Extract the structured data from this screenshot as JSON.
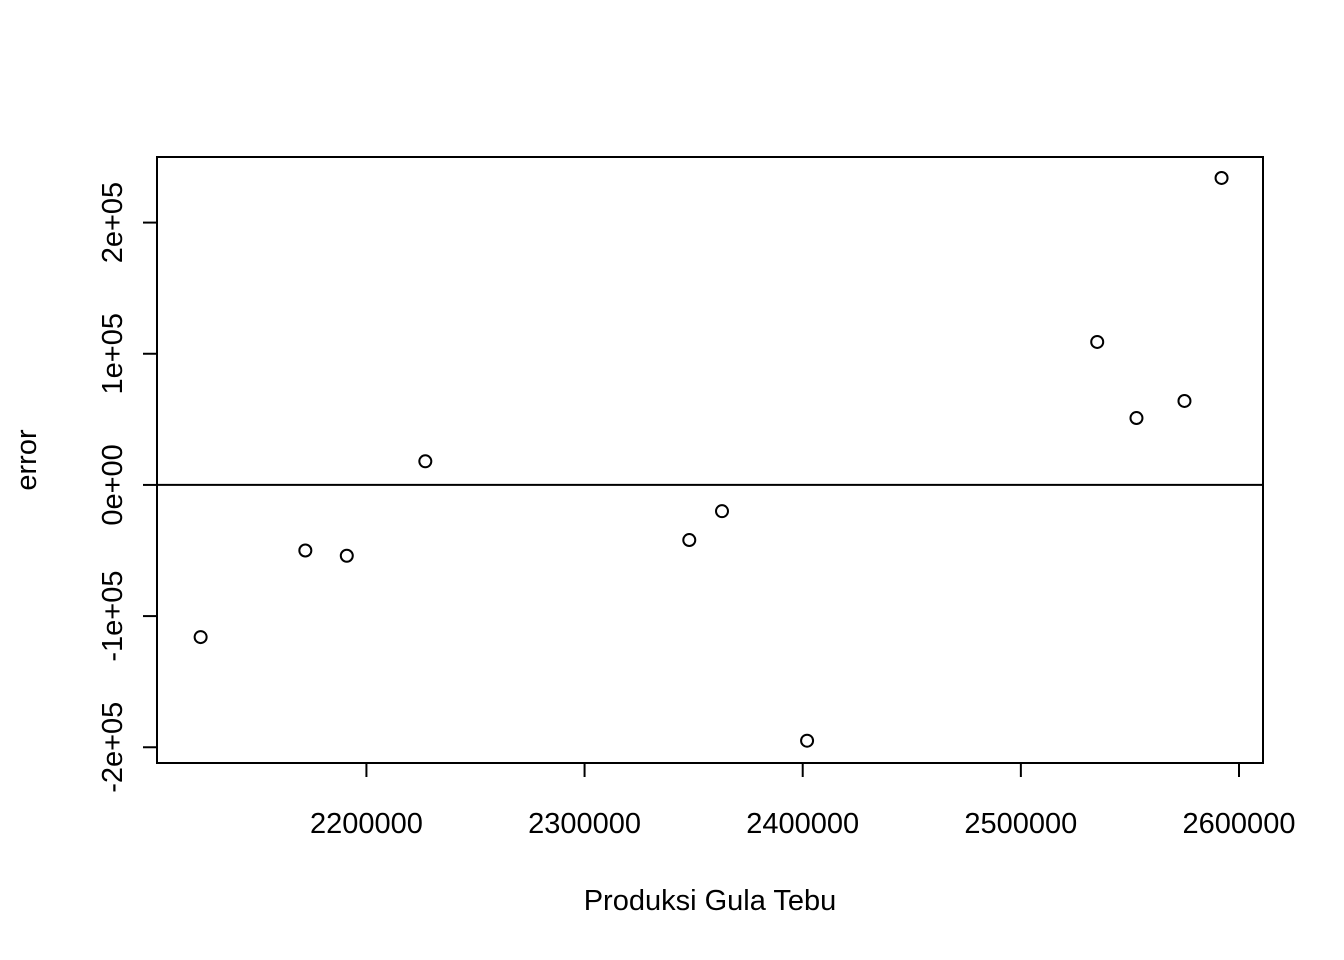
{
  "chart_data": {
    "type": "scatter",
    "title": "",
    "xlabel": "Produksi Gula Tebu",
    "ylabel": "error",
    "xlim": [
      2104000,
      2611000
    ],
    "ylim": [
      -212000,
      250000
    ],
    "x_ticks": [
      {
        "value": 2200000,
        "label": "2200000"
      },
      {
        "value": 2300000,
        "label": "2300000"
      },
      {
        "value": 2400000,
        "label": "2400000"
      },
      {
        "value": 2500000,
        "label": "2500000"
      },
      {
        "value": 2600000,
        "label": "2600000"
      }
    ],
    "y_ticks": [
      {
        "value": -200000,
        "label": "-2e+05"
      },
      {
        "value": -100000,
        "label": "-1e+05"
      },
      {
        "value": 0,
        "label": "0e+00"
      },
      {
        "value": 100000,
        "label": "1e+05"
      },
      {
        "value": 200000,
        "label": "2e+05"
      }
    ],
    "reference_line_y": 0,
    "grid": false,
    "points": [
      {
        "x": 2124000,
        "y": -116000
      },
      {
        "x": 2172000,
        "y": -50000
      },
      {
        "x": 2191000,
        "y": -54000
      },
      {
        "x": 2227000,
        "y": 18000
      },
      {
        "x": 2348000,
        "y": -42000
      },
      {
        "x": 2363000,
        "y": -20000
      },
      {
        "x": 2402000,
        "y": -195000
      },
      {
        "x": 2535000,
        "y": 109000
      },
      {
        "x": 2553000,
        "y": 51000
      },
      {
        "x": 2575000,
        "y": 64000
      },
      {
        "x": 2592000,
        "y": 234000
      }
    ],
    "colors": {
      "points": "#000000",
      "axes": "#000000",
      "background": "#ffffff"
    }
  }
}
